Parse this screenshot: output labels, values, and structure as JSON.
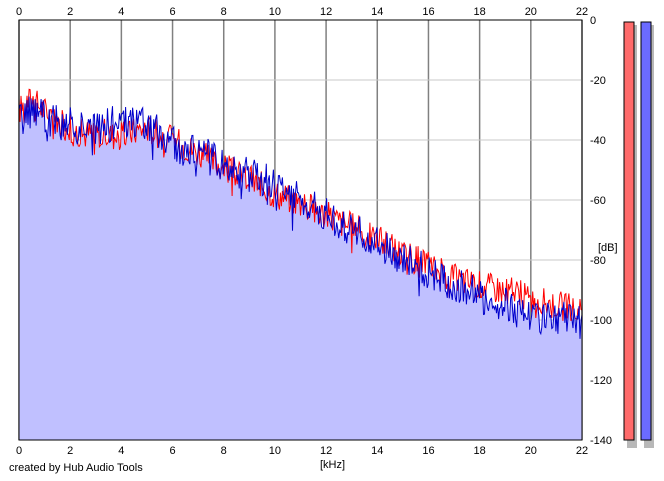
{
  "footer": {
    "credit": "created by Hub Audio Tools"
  },
  "meters": [
    {
      "name": "left-channel-meter",
      "color": "#ff6b6b"
    },
    {
      "name": "right-channel-meter",
      "color": "#6b6bff"
    }
  ],
  "chart_data": {
    "type": "area",
    "title": "",
    "xlabel": "[kHz]",
    "ylabel": "[dB]",
    "xlim": [
      0,
      22
    ],
    "ylim": [
      -140,
      0
    ],
    "x_ticks": [
      0,
      2,
      4,
      6,
      8,
      10,
      12,
      14,
      16,
      18,
      20,
      22
    ],
    "y_ticks": [
      0,
      -20,
      -40,
      -60,
      -80,
      -100,
      -120,
      -140
    ],
    "x_tick_labels": [
      "0",
      "2",
      "4",
      "6",
      "8",
      "10",
      "12",
      "14",
      "16",
      "18",
      "20",
      "22"
    ],
    "y_tick_labels": [
      "0",
      "-20",
      "-40",
      "-60",
      "-80",
      "-100",
      "-120",
      "-140"
    ],
    "grid": true,
    "colors": {
      "fill": "#c0c0ff",
      "series_red": "#ff0000",
      "series_blue": "#0000cc",
      "grid": "#c8c8c8",
      "major_grid": "#808080"
    },
    "x": [
      0,
      0.5,
      1,
      1.5,
      2,
      2.5,
      3,
      3.5,
      4,
      4.5,
      5,
      5.5,
      6,
      6.5,
      7,
      7.5,
      8,
      8.5,
      9,
      9.5,
      10,
      10.5,
      11,
      11.5,
      12,
      12.5,
      13,
      13.5,
      14,
      14.5,
      15,
      15.5,
      16,
      16.5,
      17,
      17.5,
      18,
      18.5,
      19,
      19.5,
      20,
      20.5,
      21,
      21.5,
      22
    ],
    "series": [
      {
        "values": [
          -30,
          -26,
          -30,
          -34,
          -36,
          -38,
          -37,
          -38,
          -39,
          -37,
          -36,
          -38,
          -40,
          -42,
          -44,
          -47,
          -49,
          -51,
          -53,
          -55,
          -58,
          -59,
          -61,
          -63,
          -65,
          -67,
          -69,
          -71,
          -73,
          -75,
          -78,
          -80,
          -82,
          -84,
          -86,
          -87,
          -88,
          -89,
          -90,
          -91,
          -93,
          -94,
          -95,
          -96,
          -98
        ]
      },
      {
        "values": [
          -34,
          -30,
          -32,
          -34,
          -35,
          -36,
          -36,
          -35,
          -34,
          -34,
          -35,
          -37,
          -41,
          -44,
          -44,
          -46,
          -47,
          -50,
          -52,
          -53,
          -55,
          -57,
          -60,
          -62,
          -64,
          -67,
          -70,
          -72,
          -75,
          -77,
          -80,
          -82,
          -84,
          -86,
          -88,
          -90,
          -92,
          -94,
          -95,
          -97,
          -98,
          -99,
          -99,
          -100,
          -101
        ]
      }
    ]
  }
}
